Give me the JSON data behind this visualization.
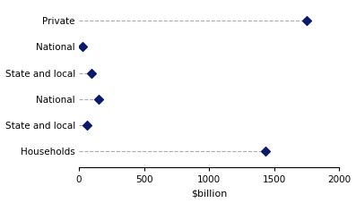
{
  "categories": [
    "Households",
    "State and local",
    "National",
    "State and local",
    "National",
    "Private"
  ],
  "values": [
    1430,
    60,
    155,
    100,
    30,
    1750
  ],
  "dot_color": "#0d1a6b",
  "line_color": "#aaaaaa",
  "xlim": [
    0,
    2000
  ],
  "xticks": [
    0,
    500,
    1000,
    1500,
    2000
  ],
  "xlabel": "$billion",
  "xlabel_fontsize": 8,
  "tick_fontsize": 7.5,
  "background_color": "#ffffff",
  "dot_size": 25,
  "marker": "D",
  "line_style": "--",
  "line_width": 0.8
}
